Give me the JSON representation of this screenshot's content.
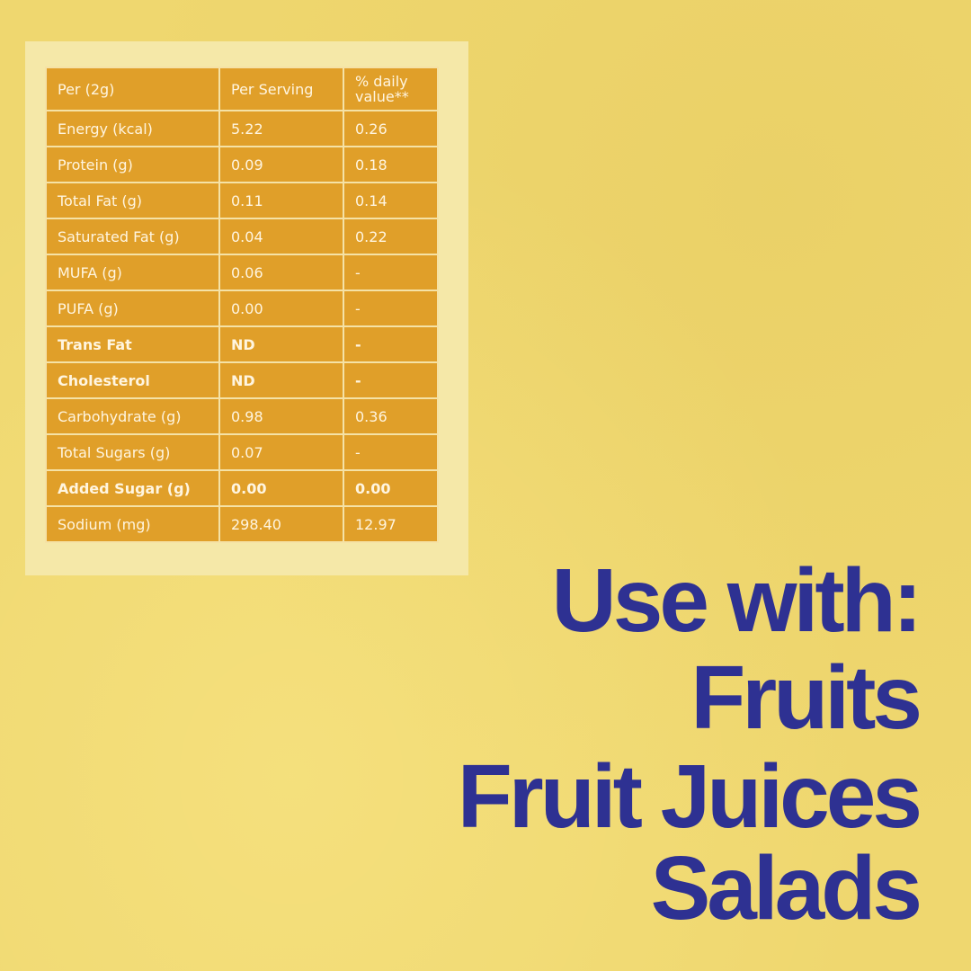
{
  "table": {
    "header": [
      "Per (2g)",
      "Per Serving",
      "% daily value**"
    ],
    "rows": [
      {
        "name": "Energy (kcal)",
        "serving": "5.22",
        "dv": "0.26",
        "bold": false
      },
      {
        "name": "Protein (g)",
        "serving": "0.09",
        "dv": "0.18",
        "bold": false
      },
      {
        "name": "Total Fat (g)",
        "serving": "0.11",
        "dv": "0.14",
        "bold": false
      },
      {
        "name": "Saturated Fat (g)",
        "serving": "0.04",
        "dv": "0.22",
        "bold": false
      },
      {
        "name": "MUFA (g)",
        "serving": "0.06",
        "dv": "-",
        "bold": false
      },
      {
        "name": "PUFA (g)",
        "serving": "0.00",
        "dv": "-",
        "bold": false
      },
      {
        "name": "Trans Fat",
        "serving": "ND",
        "dv": "-",
        "bold": true
      },
      {
        "name": "Cholesterol",
        "serving": "ND",
        "dv": "-",
        "bold": true
      },
      {
        "name": "Carbohydrate (g)",
        "serving": "0.98",
        "dv": "0.36",
        "bold": false
      },
      {
        "name": "Total Sugars (g)",
        "serving": "0.07",
        "dv": "-",
        "bold": false
      },
      {
        "name": "Added Sugar (g)",
        "serving": "0.00",
        "dv": "0.00",
        "bold": true
      },
      {
        "name": "Sodium (mg)",
        "serving": "298.40",
        "dv": "12.97",
        "bold": false
      }
    ]
  },
  "usage": {
    "lines": [
      "Use with:",
      "Fruits",
      "Fruit Juices",
      "Salads"
    ]
  },
  "colors": {
    "background": "#efd76f",
    "table": "#e09f29",
    "text": "#2e3192"
  }
}
